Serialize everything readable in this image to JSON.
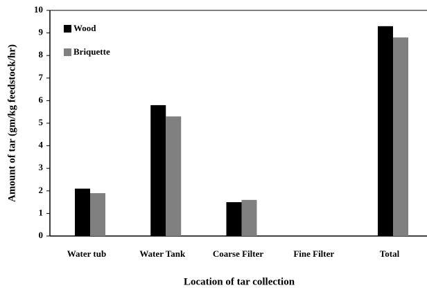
{
  "chart_data": {
    "type": "bar",
    "categories": [
      "Water tub",
      "Water Tank",
      "Coarse Filter",
      "Fine Filter",
      "Total"
    ],
    "series": [
      {
        "name": "Wood",
        "color": "#000000",
        "values": [
          2.1,
          5.8,
          1.5,
          0,
          9.3
        ]
      },
      {
        "name": "Briquette",
        "color": "#808080",
        "values": [
          1.9,
          5.3,
          1.6,
          0,
          8.8
        ]
      }
    ],
    "ylim": [
      0,
      10
    ],
    "yticks": [
      0,
      1,
      2,
      3,
      4,
      5,
      6,
      7,
      8,
      9,
      10
    ],
    "y_label": "Amount of tar  (gm/kg feedstock/hr)",
    "x_label": "Location of  tar collection",
    "legend": "upper left",
    "grid": false
  }
}
